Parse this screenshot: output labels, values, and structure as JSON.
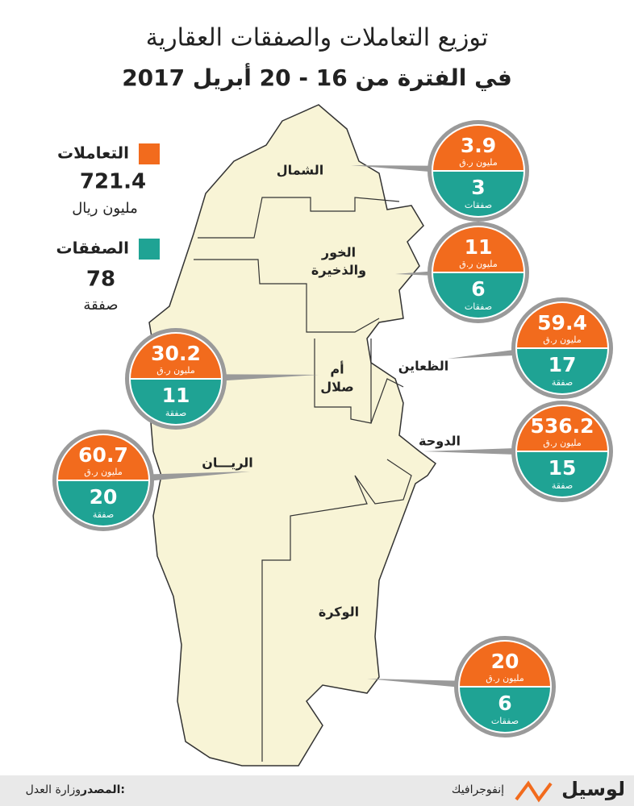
{
  "header": {
    "title": "توزيع التعاملات والصفقات العقارية",
    "subtitle": "في الفترة من 16 - 20 أبريل 2017"
  },
  "legend": {
    "transactions": {
      "label": "التعاملات",
      "value": 721.4,
      "unit": "مليون ريال"
    },
    "deals": {
      "label": "الصفقات",
      "value": 78,
      "unit": "صفقة"
    }
  },
  "regions": [
    {
      "name": [
        "الشمال"
      ],
      "amount": 3.9,
      "amount_unit": "مليون ر.ق",
      "deals": 3,
      "deals_unit": "صفقات"
    },
    {
      "name": [
        "الخور",
        "والذخيرة"
      ],
      "amount": 11,
      "amount_unit": "مليون ر.ق",
      "deals": 6,
      "deals_unit": "صفقات"
    },
    {
      "name": [
        "الظعاين"
      ],
      "amount": 59.4,
      "amount_unit": "مليون ر.ق",
      "deals": 17,
      "deals_unit": "صفقة"
    },
    {
      "name": [
        "أم",
        "صلال"
      ],
      "amount": 30.2,
      "amount_unit": "مليون ر.ق",
      "deals": 11,
      "deals_unit": "صفقة"
    },
    {
      "name": [
        "الدوحة"
      ],
      "amount": 536.2,
      "amount_unit": "مليون ر.ق",
      "deals": 15,
      "deals_unit": "صفقة"
    },
    {
      "name": [
        "الريـــان"
      ],
      "amount": 60.7,
      "amount_unit": "مليون ر.ق",
      "deals": 20,
      "deals_unit": "صفقة"
    },
    {
      "name": [
        "الوكرة"
      ],
      "amount": 20,
      "amount_unit": "مليون ر.ق",
      "deals": 6,
      "deals_unit": "صفقات"
    }
  ],
  "footer": {
    "source_label": "المصدر:",
    "source": "وزارة العدل",
    "brand": "لوسيل",
    "section": "إنفوجرافيك"
  }
}
